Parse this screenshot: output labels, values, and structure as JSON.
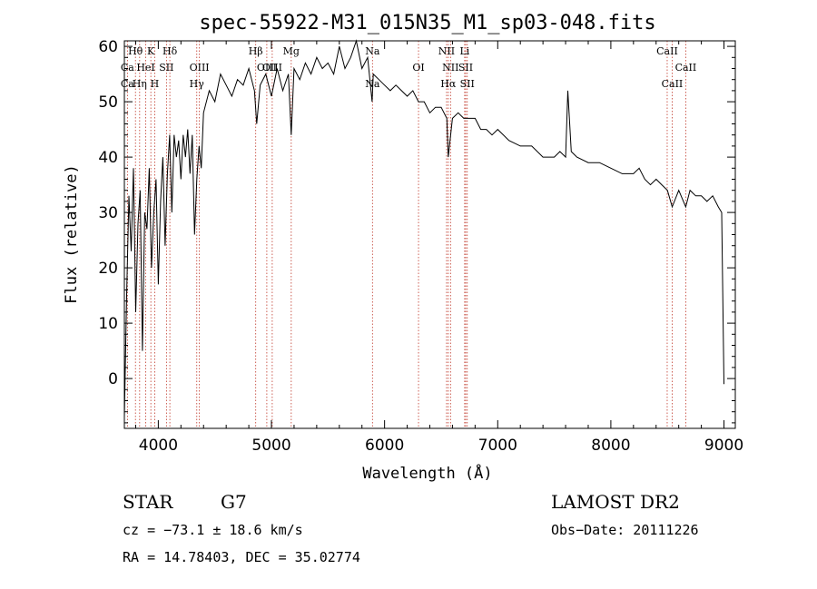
{
  "chart_data": {
    "type": "line",
    "title": "spec-55922-M31_015N35_M1_sp03-048.fits",
    "xlabel": "Wavelength (Å)",
    "ylabel": "Flux (relative)",
    "xlim": [
      3700,
      9100
    ],
    "ylim": [
      -9,
      61
    ],
    "xticks": [
      4000,
      5000,
      6000,
      7000,
      8000,
      9000
    ],
    "yticks": [
      0,
      10,
      20,
      30,
      40,
      50,
      60
    ],
    "series": [
      {
        "name": "spectrum",
        "x": [
          3700,
          3720,
          3740,
          3760,
          3780,
          3800,
          3820,
          3840,
          3860,
          3880,
          3900,
          3920,
          3940,
          3960,
          3980,
          4000,
          4020,
          4040,
          4060,
          4080,
          4100,
          4120,
          4140,
          4160,
          4180,
          4200,
          4220,
          4240,
          4260,
          4280,
          4300,
          4320,
          4340,
          4360,
          4380,
          4400,
          4450,
          4500,
          4550,
          4600,
          4650,
          4700,
          4750,
          4800,
          4850,
          4870,
          4900,
          4950,
          5000,
          5050,
          5100,
          5150,
          5175,
          5200,
          5250,
          5300,
          5350,
          5400,
          5450,
          5500,
          5550,
          5600,
          5650,
          5700,
          5750,
          5800,
          5850,
          5890,
          5900,
          5950,
          6000,
          6050,
          6100,
          6150,
          6200,
          6250,
          6300,
          6350,
          6400,
          6450,
          6500,
          6550,
          6563,
          6600,
          6650,
          6700,
          6750,
          6800,
          6850,
          6900,
          6950,
          7000,
          7100,
          7200,
          7300,
          7400,
          7500,
          7550,
          7600,
          7620,
          7650,
          7700,
          7800,
          7900,
          8000,
          8100,
          8200,
          8250,
          8300,
          8350,
          8400,
          8450,
          8500,
          8542,
          8600,
          8662,
          8700,
          8750,
          8800,
          8850,
          8900,
          8950,
          8980,
          9000
        ],
        "values": [
          -7,
          15,
          33,
          23,
          38,
          12,
          28,
          34,
          5,
          30,
          27,
          38,
          20,
          30,
          36,
          17,
          32,
          40,
          24,
          37,
          44,
          30,
          44,
          40,
          43,
          36,
          44,
          40,
          45,
          37,
          44,
          26,
          36,
          42,
          38,
          48,
          52,
          50,
          55,
          53,
          51,
          54,
          53,
          56,
          52,
          46,
          53,
          55,
          51,
          56,
          52,
          55,
          44,
          56,
          54,
          57,
          55,
          58,
          56,
          57,
          55,
          60,
          56,
          58,
          61,
          56,
          58,
          50,
          55,
          54,
          53,
          52,
          53,
          52,
          51,
          52,
          50,
          50,
          48,
          49,
          49,
          47,
          40,
          47,
          48,
          47,
          47,
          47,
          45,
          45,
          44,
          45,
          43,
          42,
          42,
          40,
          40,
          41,
          40,
          52,
          41,
          40,
          39,
          39,
          38,
          37,
          37,
          38,
          36,
          35,
          36,
          35,
          34,
          31,
          34,
          31,
          34,
          33,
          33,
          32,
          33,
          31,
          30,
          -1
        ]
      }
    ],
    "lines": [
      {
        "label": "Hθ",
        "wave": 3798,
        "row": 0
      },
      {
        "label": "Ca",
        "wave": 3727,
        "row": 1
      },
      {
        "label": "Ca",
        "wave": 3727,
        "row": 2
      },
      {
        "label": "Hη",
        "wave": 3835,
        "row": 2
      },
      {
        "label": "K",
        "wave": 3934,
        "row": 0
      },
      {
        "label": "H",
        "wave": 3968,
        "row": 2
      },
      {
        "label": "HeI",
        "wave": 3889,
        "row": 1
      },
      {
        "label": "SII",
        "wave": 4072,
        "row": 1
      },
      {
        "label": "Hδ",
        "wave": 4102,
        "row": 0
      },
      {
        "label": "OIII",
        "wave": 4363,
        "row": 1
      },
      {
        "label": "Hγ",
        "wave": 4340,
        "row": 2
      },
      {
        "label": "Hβ",
        "wave": 4861,
        "row": 0
      },
      {
        "label": "OIII",
        "wave": 4959,
        "row": 1
      },
      {
        "label": "OIII",
        "wave": 5007,
        "row": 1
      },
      {
        "label": "Mg",
        "wave": 5175,
        "row": 0
      },
      {
        "label": "Na",
        "wave": 5893,
        "row": 0
      },
      {
        "label": "Na",
        "wave": 5893,
        "row": 2
      },
      {
        "label": "OI",
        "wave": 6300,
        "row": 1
      },
      {
        "label": "NII",
        "wave": 6548,
        "row": 0
      },
      {
        "label": "NII",
        "wave": 6583,
        "row": 1
      },
      {
        "label": "Li",
        "wave": 6708,
        "row": 0
      },
      {
        "label": "SII",
        "wave": 6717,
        "row": 1
      },
      {
        "label": "Hα",
        "wave": 6563,
        "row": 2
      },
      {
        "label": "SII",
        "wave": 6731,
        "row": 2
      },
      {
        "label": "CaII",
        "wave": 8498,
        "row": 0
      },
      {
        "label": "CaII",
        "wave": 8662,
        "row": 1
      },
      {
        "label": "CaII",
        "wave": 8542,
        "row": 2
      }
    ]
  },
  "info": {
    "object_class": "STAR",
    "subclass": "G7",
    "survey": "LAMOST DR2",
    "redshift": "cz = −73.1 ± 18.6 km/s",
    "obs_date": "Obs−Date: 20111226",
    "coords": "RA =  14.78403, DEC =  35.02774"
  }
}
